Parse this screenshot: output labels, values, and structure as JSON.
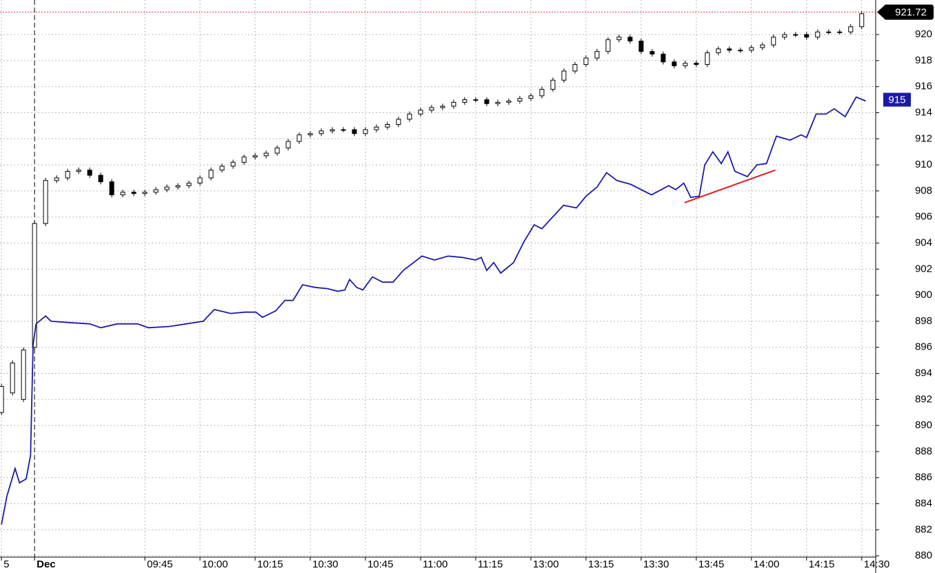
{
  "chart_data": {
    "type": "candlestick",
    "color": "#000000",
    "up_fill": "#ffffff",
    "x": [
      -9,
      -6,
      -3,
      0,
      3,
      6,
      9,
      12,
      15,
      18,
      21,
      24,
      27,
      30,
      33,
      36,
      39,
      42,
      45,
      48,
      51,
      54,
      57,
      60,
      63,
      66,
      69,
      72,
      75,
      78,
      81,
      84,
      87,
      90,
      93,
      96,
      99,
      102,
      105,
      108,
      111,
      114,
      117,
      120,
      123,
      126,
      129,
      132,
      135,
      138,
      141,
      144,
      147,
      150,
      153,
      156,
      159,
      162,
      165,
      168,
      171,
      174,
      177,
      180,
      183,
      186,
      189,
      192,
      195,
      198,
      201,
      204,
      207,
      210,
      213,
      216,
      219,
      222,
      225
    ],
    "open": [
      891.0,
      892.5,
      892.0,
      896.0,
      905.5,
      908.8,
      909.0,
      909.5,
      909.6,
      909.2,
      908.7,
      907.7,
      907.9,
      907.8,
      907.9,
      908.1,
      908.3,
      908.4,
      908.6,
      909.0,
      909.6,
      909.9,
      910.2,
      910.6,
      910.7,
      910.9,
      911.3,
      911.8,
      912.3,
      912.4,
      912.6,
      912.7,
      912.7,
      912.4,
      912.7,
      912.9,
      913.1,
      913.5,
      913.9,
      914.2,
      914.4,
      914.5,
      914.8,
      915.0,
      915.0,
      914.7,
      914.8,
      914.9,
      915.1,
      915.3,
      915.8,
      916.5,
      917.2,
      917.7,
      918.2,
      918.7,
      919.6,
      919.8,
      919.5,
      918.7,
      918.5,
      917.9,
      917.6,
      917.8,
      917.7,
      918.6,
      918.9,
      918.8,
      918.8,
      919.0,
      919.2,
      919.8,
      920.0,
      920.0,
      919.8,
      920.2,
      920.2,
      920.2,
      920.6
    ],
    "high": [
      893.2,
      895.0,
      896.0,
      905.7,
      909.0,
      909.2,
      909.7,
      909.8,
      909.8,
      909.4,
      908.9,
      908.1,
      908.1,
      908.1,
      908.3,
      908.5,
      908.6,
      908.8,
      909.2,
      909.8,
      910.1,
      910.4,
      910.8,
      910.9,
      911.1,
      911.5,
      912.0,
      912.5,
      912.6,
      912.8,
      912.9,
      912.9,
      912.9,
      912.9,
      913.1,
      913.3,
      913.7,
      914.1,
      914.4,
      914.6,
      914.7,
      915.0,
      915.2,
      915.2,
      915.2,
      915.0,
      915.1,
      915.3,
      915.5,
      916.0,
      916.7,
      917.4,
      917.9,
      918.4,
      918.9,
      919.8,
      920.0,
      920.0,
      919.7,
      918.9,
      918.7,
      918.1,
      918.0,
      918.0,
      918.8,
      919.1,
      919.1,
      919.0,
      919.2,
      919.4,
      920.0,
      920.2,
      920.2,
      920.2,
      920.4,
      920.4,
      920.4,
      920.8,
      921.8
    ],
    "low": [
      890.8,
      892.3,
      891.8,
      895.8,
      905.3,
      908.6,
      908.8,
      909.3,
      909.0,
      908.5,
      907.5,
      907.5,
      907.6,
      907.6,
      907.7,
      907.9,
      908.1,
      908.2,
      908.4,
      908.8,
      909.4,
      909.7,
      910.0,
      910.4,
      910.5,
      910.7,
      911.1,
      911.6,
      912.1,
      912.2,
      912.4,
      912.5,
      912.2,
      912.2,
      912.5,
      912.7,
      912.9,
      913.3,
      913.7,
      914.0,
      914.2,
      914.3,
      914.6,
      914.8,
      914.5,
      914.5,
      914.6,
      914.7,
      914.9,
      915.1,
      915.6,
      916.3,
      917.0,
      917.5,
      918.0,
      918.5,
      919.4,
      919.3,
      918.5,
      918.3,
      917.7,
      917.4,
      917.4,
      917.5,
      917.5,
      918.4,
      918.6,
      918.6,
      918.6,
      918.8,
      919.0,
      919.6,
      919.8,
      919.6,
      919.6,
      920.0,
      920.0,
      920.0,
      920.4
    ],
    "close": [
      893.0,
      894.8,
      895.8,
      905.5,
      908.8,
      909.0,
      909.5,
      909.6,
      909.2,
      908.7,
      907.7,
      907.9,
      907.8,
      907.9,
      908.1,
      908.3,
      908.4,
      908.6,
      909.0,
      909.6,
      909.9,
      910.2,
      910.6,
      910.7,
      910.9,
      911.3,
      911.8,
      912.3,
      912.4,
      912.6,
      912.7,
      912.7,
      912.4,
      912.7,
      912.9,
      913.1,
      913.5,
      913.9,
      914.2,
      914.4,
      914.5,
      914.8,
      915.0,
      915.0,
      914.7,
      914.8,
      914.9,
      915.1,
      915.3,
      915.8,
      916.5,
      917.2,
      917.7,
      918.2,
      918.7,
      919.6,
      919.8,
      919.5,
      918.7,
      918.5,
      917.9,
      917.6,
      917.8,
      917.7,
      918.6,
      918.9,
      918.8,
      918.8,
      919.0,
      919.2,
      919.8,
      920.0,
      920.0,
      919.8,
      920.2,
      920.2,
      920.2,
      920.6,
      921.6
    ],
    "last": 921.72,
    "last_line_color": "#e03030",
    "overlay": {
      "type": "line",
      "color": "#1a1aa8",
      "x": [
        -9,
        -7.5,
        -5.3,
        -4.1,
        -2.3,
        -1.1,
        -0.4,
        0.4,
        3,
        4.5,
        9.4,
        15,
        18,
        22.5,
        28,
        31,
        36.6,
        45.9,
        48.9,
        53.4,
        57.2,
        60.2,
        62,
        65.6,
        68.1,
        70.3,
        72.9,
        76.3,
        79.7,
        82.5,
        84.4,
        85.7,
        87.6,
        89.3,
        91.9,
        94.7,
        97.5,
        100.3,
        103.1,
        105.4,
        108.8,
        112.5,
        116.3,
        120,
        121.5,
        123,
        124.9,
        126.8,
        130.3,
        133.1,
        135.9,
        138,
        140.6,
        143.9,
        147.4,
        150,
        153,
        155.6,
        158.4,
        162.2,
        167.8,
        172.5,
        174.4,
        176.6,
        178.5,
        180.8,
        182.3,
        184.5,
        186.8,
        188.6,
        190.5,
        193.9,
        196.5,
        199.1,
        201.8,
        205.5,
        208.5,
        210,
        212.6,
        215.3,
        217.5,
        220.5,
        223.5,
        226.1
      ],
      "values": [
        882.4,
        884.6,
        886.7,
        885.6,
        885.9,
        887.7,
        896.2,
        897.8,
        898.4,
        898.0,
        897.9,
        897.8,
        897.5,
        897.8,
        897.8,
        897.5,
        897.6,
        898.0,
        898.9,
        898.6,
        898.7,
        898.7,
        898.3,
        898.8,
        899.6,
        899.6,
        900.8,
        900.6,
        900.5,
        900.3,
        900.4,
        901.2,
        900.6,
        900.4,
        901.4,
        901.0,
        901.0,
        901.9,
        902.5,
        903.0,
        902.7,
        903.0,
        902.9,
        902.7,
        902.9,
        901.9,
        902.5,
        901.7,
        902.5,
        904.1,
        905.4,
        905.1,
        905.9,
        906.9,
        906.7,
        907.6,
        908.3,
        909.4,
        908.8,
        908.5,
        907.7,
        908.4,
        908.1,
        908.6,
        907.5,
        907.6,
        910.0,
        911.0,
        910.1,
        911.0,
        909.5,
        909.1,
        910.0,
        910.1,
        912.2,
        911.9,
        912.3,
        912.1,
        913.9,
        913.9,
        914.3,
        913.7,
        915.2,
        914.9
      ],
      "last": 915
    },
    "trendline": {
      "color": "#dd1c1c",
      "x": [
        176.8,
        201.5
      ],
      "values": [
        907.1,
        909.6
      ]
    },
    "xlim": [
      -9.4,
      228.8
    ],
    "xticks": [
      {
        "value": -9,
        "label": "5"
      },
      {
        "value": 0,
        "label": "Dec"
      },
      {
        "value": 30,
        "label": "09:45"
      },
      {
        "value": 45,
        "label": "10:00"
      },
      {
        "value": 60,
        "label": "10:15"
      },
      {
        "value": 75,
        "label": "10:30"
      },
      {
        "value": 90,
        "label": "10:45"
      },
      {
        "value": 105,
        "label": "11:00"
      },
      {
        "value": 120,
        "label": "11:15"
      },
      {
        "value": 135,
        "label": "13:00"
      },
      {
        "value": 150,
        "label": "13:15"
      },
      {
        "value": 165,
        "label": "13:30"
      },
      {
        "value": 180,
        "label": "13:45"
      },
      {
        "value": 195,
        "label": "14:00"
      },
      {
        "value": 210,
        "label": "14:15"
      },
      {
        "value": 225,
        "label": "14:30"
      }
    ],
    "session_start": 0,
    "ylim": [
      879.9,
      922.65
    ],
    "yticks": [
      880,
      882,
      884,
      886,
      888,
      890,
      892,
      894,
      896,
      898,
      900,
      902,
      904,
      906,
      908,
      910,
      912,
      914,
      916,
      918,
      920
    ],
    "grid": true
  }
}
